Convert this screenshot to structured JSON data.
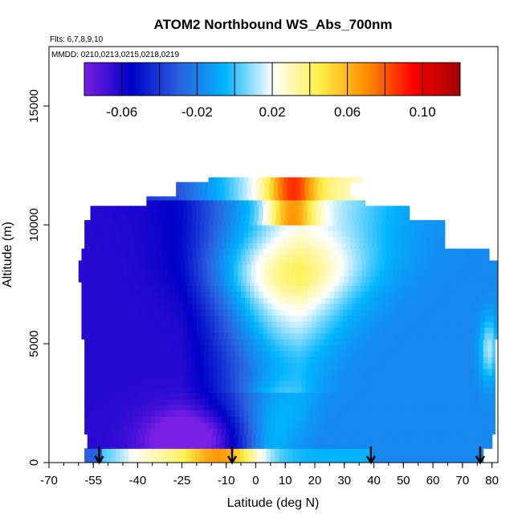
{
  "chart_data": {
    "type": "heatmap",
    "title": "ATOM2 Northbound WS_Abs_700nm",
    "flights_note": "Flts: 6,7,8,9,10",
    "dates_note": "MMDD: 0210,0213,0215,0218,0219",
    "xlabel": "Latitude (deg N)",
    "ylabel": "Altitude (m)",
    "xlim": [
      -70,
      82
    ],
    "ylim": [
      0,
      17500
    ],
    "x_ticks": [
      -70,
      -55,
      -40,
      -25,
      -10,
      0,
      10,
      20,
      30,
      40,
      50,
      60,
      70,
      80
    ],
    "x_tick_labels": [
      "-70",
      "-55",
      "-40",
      "-25",
      "-10",
      "0",
      "10",
      "20",
      "30",
      "40",
      "50",
      "60",
      "70",
      "80"
    ],
    "y_ticks": [
      0,
      5000,
      10000,
      15000
    ],
    "y_tick_labels": [
      "0",
      "5000",
      "10000",
      "15000"
    ],
    "colorbar": {
      "range": [
        -0.08,
        0.12
      ],
      "colors": [
        "#7a1fe6",
        "#0000c8",
        "#2a5fe0",
        "#00b4ff",
        "#ffffff",
        "#fff04a",
        "#ff9000",
        "#ff0000",
        "#a00000"
      ],
      "ticks": [
        -0.06,
        -0.02,
        0.02,
        0.06,
        0.1
      ],
      "tick_labels": [
        "-0.06",
        "-0.02",
        "0.02",
        "0.06",
        "0.10"
      ]
    },
    "flight_arrow_latitudes": [
      -53,
      -8,
      39,
      76
    ],
    "grid": false,
    "legend": "colorbar top"
  }
}
